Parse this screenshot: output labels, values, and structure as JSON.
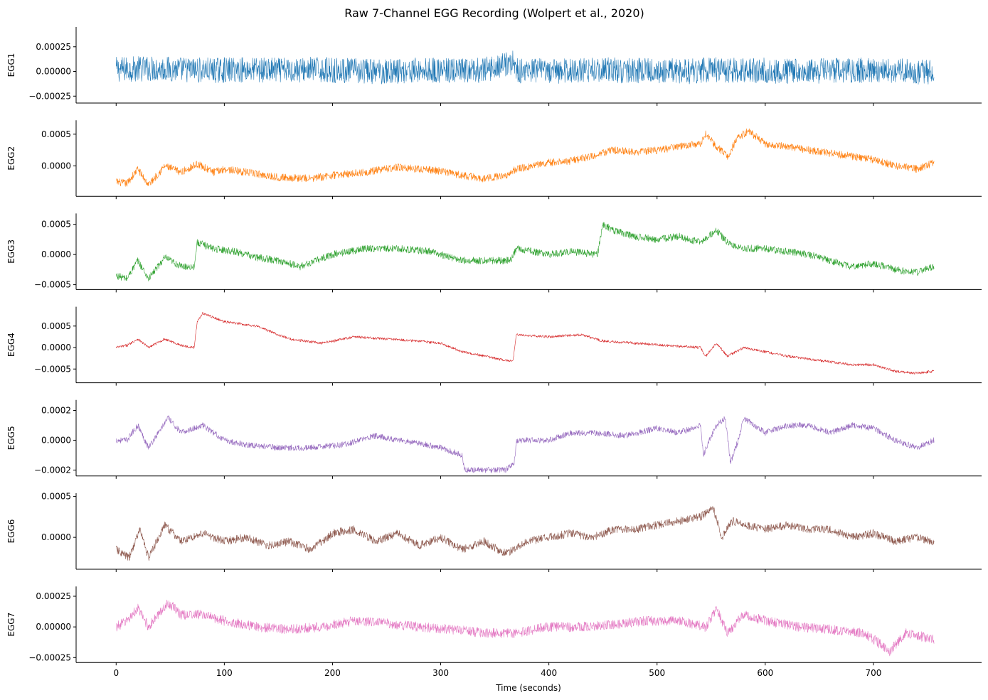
{
  "title": "Raw 7-Channel EGG Recording (Wolpert et al., 2020)",
  "xlabel": "Time (seconds)",
  "chart_data": {
    "type": "line",
    "title": "Raw 7-Channel EGG Recording (Wolpert et al., 2020)",
    "xlabel": "Time (seconds)",
    "xlim": [
      -37,
      800
    ],
    "xticks": [
      0,
      100,
      200,
      300,
      400,
      500,
      600,
      700
    ],
    "grid": false,
    "legend": "none",
    "subplots": [
      {
        "ylabel": "EGG1",
        "color": "#1f77b4",
        "ylim": [
          -0.00032,
          0.00045
        ],
        "yticks": [
          -0.00025,
          0,
          0.00025
        ],
        "ytick_labels": [
          "−0.00025",
          "0.00000",
          "0.00025"
        ],
        "x": [
          0,
          30,
          60,
          90,
          120,
          150,
          180,
          210,
          240,
          270,
          300,
          320,
          340,
          368,
          369,
          400,
          430,
          450,
          470,
          500,
          530,
          560,
          580,
          600,
          630,
          660,
          690,
          720,
          756
        ],
        "y": [
          2e-05,
          3e-05,
          2e-05,
          1e-05,
          2e-05,
          1e-05,
          2e-05,
          1e-05,
          0.0,
          1e-05,
          1e-05,
          0.0,
          1e-05,
          0.0001,
          1e-05,
          0.0,
          1e-05,
          2e-05,
          1e-05,
          1e-05,
          0.0,
          2e-05,
          1e-05,
          1e-05,
          0.0,
          1e-05,
          1e-05,
          0.0,
          0.0
        ],
        "amp": 0.00013
      },
      {
        "ylabel": "EGG2",
        "color": "#ff7f0e",
        "ylim": [
          -0.00048,
          0.00072
        ],
        "yticks": [
          0,
          0.0005
        ],
        "ytick_labels": [
          "0.0000",
          "0.0005"
        ],
        "x": [
          0,
          10,
          20,
          30,
          45,
          60,
          75,
          90,
          100,
          120,
          150,
          180,
          200,
          230,
          260,
          280,
          300,
          320,
          340,
          360,
          370,
          400,
          420,
          440,
          460,
          480,
          500,
          520,
          540,
          545,
          555,
          565,
          575,
          585,
          600,
          620,
          640,
          660,
          680,
          700,
          720,
          740,
          756
        ],
        "y": [
          -0.00025,
          -0.00028,
          -5e-05,
          -0.0003,
          0.0,
          -0.0001,
          3e-05,
          -0.0001,
          -5e-05,
          -0.0001,
          -0.00018,
          -0.0002,
          -0.00015,
          -0.0001,
          -2e-05,
          -5e-05,
          -8e-05,
          -0.00015,
          -0.0002,
          -0.00015,
          -5e-05,
          5e-05,
          8e-05,
          0.00015,
          0.00025,
          0.00022,
          0.00025,
          0.0003,
          0.00035,
          0.0005,
          0.0003,
          0.00015,
          0.00045,
          0.00055,
          0.00035,
          0.0003,
          0.00025,
          0.0002,
          0.00015,
          0.0001,
          0.0,
          -5e-05,
          5e-05
        ],
        "amp": 6e-05
      },
      {
        "ylabel": "EGG3",
        "color": "#2ca02c",
        "ylim": [
          -0.00058,
          0.00068
        ],
        "yticks": [
          -0.0005,
          0,
          0.0005
        ],
        "ytick_labels": [
          "−0.0005",
          "0.0000",
          "0.0005"
        ],
        "x": [
          0,
          10,
          20,
          30,
          45,
          60,
          72,
          75,
          90,
          110,
          130,
          150,
          170,
          200,
          230,
          260,
          290,
          320,
          350,
          365,
          370,
          400,
          420,
          445,
          450,
          460,
          480,
          500,
          520,
          540,
          555,
          565,
          580,
          600,
          620,
          640,
          660,
          680,
          700,
          720,
          740,
          756
        ],
        "y": [
          -0.00035,
          -0.0004,
          -0.0001,
          -0.0004,
          -5e-05,
          -0.0002,
          -0.0002,
          0.0002,
          0.0001,
          5e-05,
          -5e-05,
          -0.0001,
          -0.0002,
          0.0,
          0.0001,
          0.0001,
          5e-05,
          -0.0001,
          -0.0001,
          -0.0001,
          0.0001,
          0.0,
          5e-05,
          0.0,
          0.0005,
          0.0004,
          0.0003,
          0.00025,
          0.0003,
          0.0002,
          0.0004,
          0.0002,
          0.0001,
          0.0001,
          5e-05,
          0.0,
          -0.0001,
          -0.0002,
          -0.00015,
          -0.00025,
          -0.0003,
          -0.0002
        ],
        "amp": 6e-05
      },
      {
        "ylabel": "EGG4",
        "color": "#d62728",
        "ylim": [
          -0.00082,
          0.00095
        ],
        "yticks": [
          -0.0005,
          0,
          0.0005
        ],
        "ytick_labels": [
          "−0.0005",
          "0.0000",
          "0.0005"
        ],
        "x": [
          0,
          10,
          20,
          30,
          45,
          60,
          72,
          75,
          80,
          100,
          130,
          160,
          190,
          220,
          250,
          280,
          300,
          320,
          340,
          360,
          367,
          370,
          400,
          430,
          450,
          480,
          510,
          540,
          545,
          555,
          565,
          580,
          600,
          620,
          650,
          680,
          700,
          720,
          740,
          756
        ],
        "y": [
          0.0,
          5e-05,
          0.0002,
          0.0,
          0.0002,
          5e-05,
          0.0,
          0.0006,
          0.0008,
          0.0006,
          0.0005,
          0.0002,
          0.0001,
          0.00025,
          0.0002,
          0.00015,
          0.0001,
          -0.0001,
          -0.0002,
          -0.0003,
          -0.0003,
          0.0003,
          0.00025,
          0.0003,
          0.00015,
          0.0001,
          5e-05,
          0.0,
          -0.0002,
          0.0001,
          -0.0002,
          0.0,
          -0.0001,
          -0.0002,
          -0.0003,
          -0.0004,
          -0.0004,
          -0.00055,
          -0.0006,
          -0.00055
        ],
        "amp": 3e-05
      },
      {
        "ylabel": "EGG5",
        "color": "#9467bd",
        "ylim": [
          -0.00024,
          0.00027
        ],
        "yticks": [
          -0.0002,
          0,
          0.0002
        ],
        "ytick_labels": [
          "−0.0002",
          "0.0000",
          "0.0002"
        ],
        "x": [
          0,
          10,
          20,
          30,
          48,
          60,
          80,
          100,
          120,
          150,
          180,
          210,
          240,
          260,
          280,
          300,
          320,
          322,
          340,
          360,
          368,
          370,
          380,
          400,
          420,
          440,
          470,
          500,
          520,
          540,
          543,
          548,
          555,
          563,
          568,
          575,
          580,
          600,
          620,
          640,
          660,
          680,
          700,
          720,
          740,
          756
        ],
        "y": [
          0.0,
          0.0,
          0.0001,
          -5e-05,
          0.00015,
          5e-05,
          0.0001,
          0.0,
          -3e-05,
          -5e-05,
          -5e-05,
          -3e-05,
          3e-05,
          0.0,
          -2e-05,
          -5e-05,
          -0.0001,
          -0.0002,
          -0.0002,
          -0.0002,
          -0.00015,
          0.0,
          0.0,
          0.0,
          5e-05,
          5e-05,
          3e-05,
          8e-05,
          5e-05,
          0.0001,
          -0.0001,
          0.0,
          0.0001,
          0.00015,
          -0.00015,
          0.0,
          0.00015,
          5e-05,
          0.0001,
          0.0001,
          5e-05,
          0.0001,
          8e-05,
          0.0,
          -5e-05,
          0.0
        ],
        "amp": 2e-05
      },
      {
        "ylabel": "EGG6",
        "color": "#8c564b",
        "ylim": [
          -0.00039,
          0.00054
        ],
        "yticks": [
          0,
          0.0005
        ],
        "ytick_labels": [
          "0.0000",
          "0.0005"
        ],
        "x": [
          0,
          12,
          22,
          30,
          45,
          60,
          80,
          100,
          120,
          140,
          160,
          180,
          200,
          220,
          240,
          260,
          280,
          300,
          320,
          340,
          360,
          380,
          400,
          420,
          440,
          460,
          480,
          500,
          520,
          540,
          552,
          560,
          570,
          580,
          600,
          620,
          640,
          660,
          680,
          700,
          720,
          740,
          756
        ],
        "y": [
          -0.00015,
          -0.00025,
          0.0001,
          -0.00025,
          0.00015,
          -5e-05,
          5e-05,
          -5e-05,
          0.0,
          -0.0001,
          -5e-05,
          -0.00015,
          5e-05,
          0.0001,
          -5e-05,
          5e-05,
          -0.0001,
          0.0,
          -0.00015,
          -5e-05,
          -0.0002,
          -5e-05,
          0.0,
          5e-05,
          0.0,
          0.0001,
          0.0001,
          0.00015,
          0.0002,
          0.00025,
          0.00035,
          0.0,
          0.0002,
          0.00015,
          0.0001,
          0.00015,
          0.0001,
          0.0001,
          0.0,
          5e-05,
          -5e-05,
          0.0,
          -5e-05
        ],
        "amp": 5e-05
      },
      {
        "ylabel": "EGG7",
        "color": "#e377c2",
        "ylim": [
          -0.00029,
          0.00033
        ],
        "yticks": [
          -0.00025,
          0,
          0.00025
        ],
        "ytick_labels": [
          "−0.00025",
          "0.00000",
          "0.00025"
        ],
        "x": [
          0,
          10,
          20,
          30,
          48,
          60,
          80,
          100,
          130,
          160,
          190,
          220,
          250,
          280,
          310,
          340,
          370,
          400,
          430,
          460,
          490,
          520,
          545,
          555,
          565,
          580,
          600,
          630,
          660,
          690,
          700,
          715,
          730,
          756
        ],
        "y": [
          0.0,
          5e-05,
          0.00015,
          0.0,
          0.0002,
          0.0001,
          0.0001,
          5e-05,
          0.0,
          -2e-05,
          0.0,
          5e-05,
          3e-05,
          0.0,
          -2e-05,
          -5e-05,
          -5e-05,
          0.0,
          0.0,
          2e-05,
          5e-05,
          5e-05,
          0.0,
          0.00015,
          -5e-05,
          0.0001,
          5e-05,
          0.0,
          -2e-05,
          -5e-05,
          -0.0001,
          -0.0002,
          -5e-05,
          -0.0001
        ],
        "amp": 4e-05
      }
    ]
  }
}
